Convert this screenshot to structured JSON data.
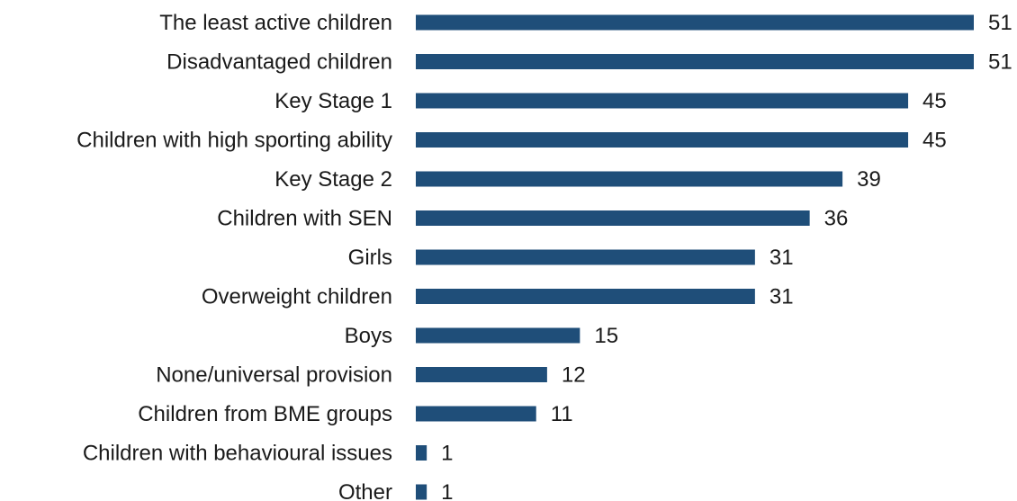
{
  "chart_data": {
    "type": "bar",
    "orientation": "horizontal",
    "categories": [
      "The least active children",
      "Disadvantaged children",
      "Key Stage 1",
      "Children with high sporting ability",
      "Key Stage 2",
      "Children with SEN",
      "Girls",
      "Overweight children",
      "Boys",
      "None/universal provision",
      "Children from BME groups",
      "Children with behavioural issues",
      "Other"
    ],
    "values": [
      51,
      51,
      45,
      45,
      39,
      36,
      31,
      31,
      15,
      12,
      11,
      1,
      1
    ],
    "xlim": [
      0,
      51
    ],
    "grid": false,
    "legend": "none",
    "bar_color": "#1f4e79",
    "title": "",
    "xlabel": "",
    "ylabel": ""
  }
}
